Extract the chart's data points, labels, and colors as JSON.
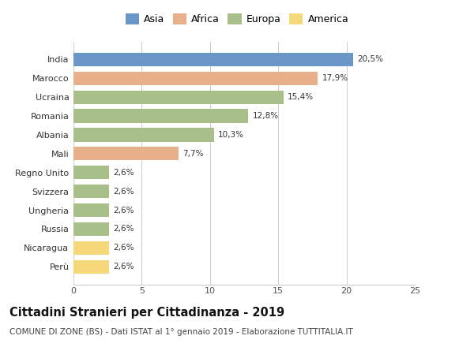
{
  "categories": [
    "India",
    "Marocco",
    "Ucraina",
    "Romania",
    "Albania",
    "Mali",
    "Regno Unito",
    "Svizzera",
    "Ungheria",
    "Russia",
    "Nicaragua",
    "Perù"
  ],
  "values": [
    20.5,
    17.9,
    15.4,
    12.8,
    10.3,
    7.7,
    2.6,
    2.6,
    2.6,
    2.6,
    2.6,
    2.6
  ],
  "labels": [
    "20,5%",
    "17,9%",
    "15,4%",
    "12,8%",
    "10,3%",
    "7,7%",
    "2,6%",
    "2,6%",
    "2,6%",
    "2,6%",
    "2,6%",
    "2,6%"
  ],
  "colors": [
    "#6b96c8",
    "#e8b08a",
    "#a8bf8a",
    "#a8bf8a",
    "#a8bf8a",
    "#e8b08a",
    "#a8bf8a",
    "#a8bf8a",
    "#a8bf8a",
    "#a8bf8a",
    "#f5d87a",
    "#f5d87a"
  ],
  "legend": [
    {
      "label": "Asia",
      "color": "#6b96c8"
    },
    {
      "label": "Africa",
      "color": "#e8b08a"
    },
    {
      "label": "Europa",
      "color": "#a8bf8a"
    },
    {
      "label": "America",
      "color": "#f5d87a"
    }
  ],
  "xlim": [
    0,
    25
  ],
  "xticks": [
    0,
    5,
    10,
    15,
    20,
    25
  ],
  "title": "Cittadini Stranieri per Cittadinanza - 2019",
  "subtitle": "COMUNE DI ZONE (BS) - Dati ISTAT al 1° gennaio 2019 - Elaborazione TUTTITALIA.IT",
  "title_fontsize": 10.5,
  "subtitle_fontsize": 7.5,
  "label_fontsize": 7.5,
  "tick_fontsize": 8,
  "background_color": "#ffffff",
  "grid_color": "#cccccc"
}
